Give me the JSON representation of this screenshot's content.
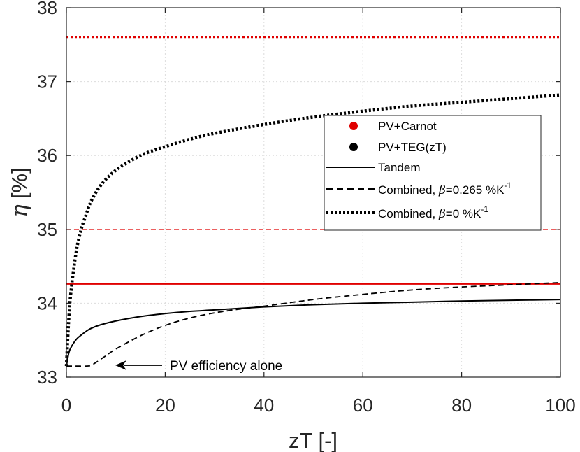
{
  "chart_data": {
    "type": "line",
    "title": "",
    "xlabel": "zT [-]",
    "ylabel_symbol": "η",
    "ylabel_unit": "[%]",
    "xlim": [
      0,
      100
    ],
    "ylim": [
      33,
      38
    ],
    "xticks": [
      0,
      20,
      40,
      60,
      80,
      100
    ],
    "yticks": [
      33,
      34,
      35,
      36,
      37,
      38
    ],
    "grid": true,
    "legend_position": "center-right",
    "legend": [
      {
        "label": "PV+Carnot",
        "marker": "dot",
        "color": "#e00000"
      },
      {
        "label": "PV+TEG(zT)",
        "marker": "dot",
        "color": "#000000"
      },
      {
        "label": "Tandem",
        "style": "solid",
        "color": "#000000"
      },
      {
        "label_prefix": "Combined, ",
        "label_symbol": "β",
        "label_value": "=0.265 %K",
        "label_sup": "-1",
        "style": "dashed",
        "color": "#000000"
      },
      {
        "label_prefix": "Combined, ",
        "label_symbol": "β",
        "label_value": "=0 %K",
        "label_sup": "-1",
        "style": "dotted",
        "color": "#000000"
      }
    ],
    "reference_lines": [
      {
        "name": "PV+Carnot, Combined β=0 %K-1",
        "y": 37.6,
        "style": "dotted",
        "color": "#e00000"
      },
      {
        "name": "PV+Carnot, Combined β=0.265 %K-1",
        "y": 35.0,
        "style": "dashed",
        "color": "#e00000"
      },
      {
        "name": "PV+Carnot, Tandem",
        "y": 34.26,
        "style": "solid",
        "color": "#e00000"
      }
    ],
    "series": [
      {
        "name": "PV+TEG(zT), Tandem",
        "style": "solid",
        "color": "#000000",
        "x": [
          0,
          0.5,
          1,
          2,
          3,
          4,
          5,
          7,
          10,
          15,
          20,
          25,
          30,
          40,
          50,
          60,
          70,
          80,
          90,
          100
        ],
        "y": [
          33.15,
          33.33,
          33.41,
          33.51,
          33.57,
          33.62,
          33.66,
          33.71,
          33.76,
          33.82,
          33.86,
          33.89,
          33.91,
          33.95,
          33.98,
          34.0,
          34.015,
          34.03,
          34.04,
          34.05
        ]
      },
      {
        "name": "PV+TEG(zT), Combined β=0.265 %K-1",
        "style": "dashed",
        "color": "#000000",
        "x": [
          0,
          2,
          4,
          5,
          6,
          8,
          10,
          15,
          20,
          25,
          30,
          35,
          40,
          50,
          60,
          70,
          80,
          90,
          100
        ],
        "y": [
          33.15,
          33.15,
          33.15,
          33.16,
          33.2,
          33.29,
          33.38,
          33.56,
          33.7,
          33.8,
          33.87,
          33.92,
          33.96,
          34.05,
          34.12,
          34.18,
          34.22,
          34.25,
          34.28
        ]
      },
      {
        "name": "PV+TEG(zT), Combined β=0 %K-1",
        "style": "dotted",
        "color": "#000000",
        "x": [
          0,
          0.5,
          1,
          2,
          3,
          4,
          5,
          7,
          10,
          15,
          20,
          25,
          30,
          40,
          50,
          60,
          70,
          80,
          90,
          100
        ],
        "y": [
          33.15,
          33.8,
          34.2,
          34.7,
          35.0,
          35.2,
          35.38,
          35.6,
          35.8,
          36.0,
          36.12,
          36.22,
          36.3,
          36.42,
          36.52,
          36.6,
          36.67,
          36.72,
          36.77,
          36.82
        ]
      }
    ],
    "annotations": [
      {
        "text": "PV efficiency alone",
        "arrow_to": {
          "x": 10,
          "y": 33.15
        }
      }
    ]
  }
}
